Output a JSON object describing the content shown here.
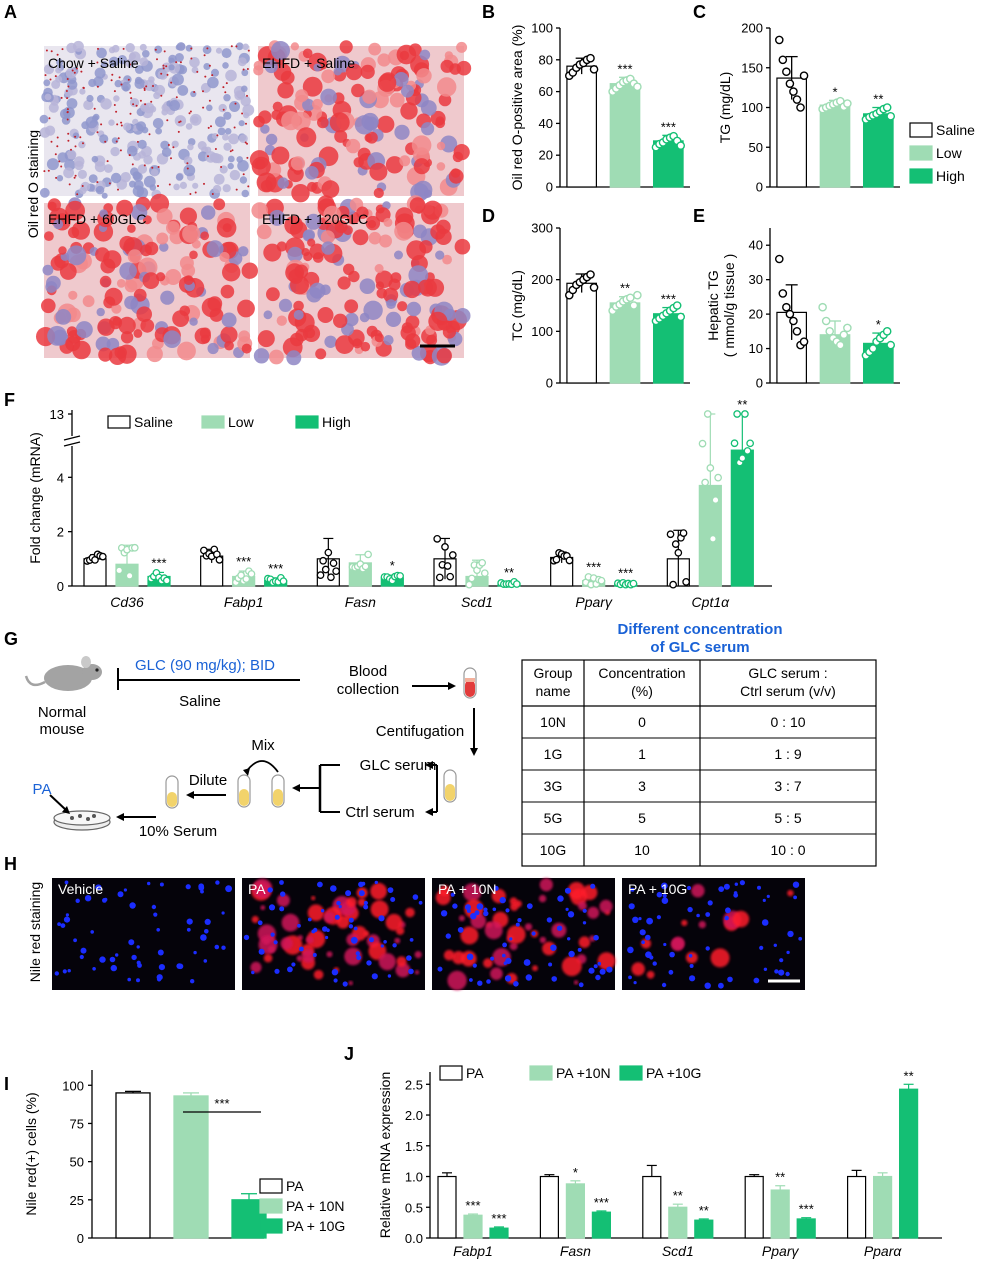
{
  "colors": {
    "saline": "#ffffff",
    "low": "#9fdcb4",
    "high": "#14bf74",
    "blue_text": "#1a62d6",
    "edge": "#000000"
  },
  "panels": {
    "A": {
      "letter": "A",
      "side_label": "Oil red O staining",
      "images": [
        {
          "label": "Chow + Saline",
          "style": "light"
        },
        {
          "label": "EHFD + Saline",
          "style": "red"
        },
        {
          "label": "EHFD + 60GLC",
          "style": "red"
        },
        {
          "label": "EHFD + 120GLC",
          "style": "red"
        }
      ]
    },
    "G": {
      "letter": "G",
      "glc_dose": "GLC (90 mg/kg); BID",
      "saline": "Saline",
      "normal_mouse_1": "Normal",
      "normal_mouse_2": "mouse",
      "blood_1": "Blood",
      "blood_2": "collection",
      "centrifugation": "Centifugation",
      "glc_serum": "GLC serum",
      "ctrl_serum": "Ctrl serum",
      "mix": "Mix",
      "dilute": "Dilute",
      "pa": "PA",
      "serum10": "10% Serum",
      "table_title_1": "Different concentration",
      "table_title_2": "of GLC serum",
      "table_header": {
        "c1a": "Group",
        "c1b": "name",
        "c2a": "Concentration",
        "c2b": "(%)",
        "c3a": "GLC serum :",
        "c3b": "Ctrl serum (v/v)"
      },
      "table_rows": [
        [
          "10N",
          "0",
          "0 : 10"
        ],
        [
          "1G",
          "1",
          "1 : 9"
        ],
        [
          "3G",
          "3",
          "3 : 7"
        ],
        [
          "5G",
          "5",
          "5 : 5"
        ],
        [
          "10G",
          "10",
          "10 : 0"
        ]
      ]
    },
    "H": {
      "letter": "H",
      "side_label": "Nile red staining",
      "images": [
        {
          "label": "Vehicle",
          "red": 0
        },
        {
          "label": "PA",
          "red": 1
        },
        {
          "label": "PA + 10N",
          "red": 0.85
        },
        {
          "label": "PA + 10G",
          "red": 0.25
        }
      ]
    }
  },
  "chart_data": [
    {
      "panel": "B",
      "type": "bar",
      "ylabel": "Oil red O-positive area (%)",
      "ylim": [
        0,
        100
      ],
      "yticks": [
        0,
        20,
        40,
        60,
        80,
        100
      ],
      "series": [
        {
          "name": "Saline",
          "value": 76,
          "err": 5,
          "stars": "",
          "points": [
            70,
            72,
            75,
            77,
            78,
            80,
            81,
            74
          ]
        },
        {
          "name": "Low",
          "value": 65,
          "err": 4,
          "stars": "***",
          "points": [
            60,
            62,
            64,
            66,
            67,
            68,
            65,
            63
          ]
        },
        {
          "name": "High",
          "value": 29,
          "err": 3.5,
          "stars": "***",
          "points": [
            25,
            27,
            28,
            30,
            31,
            32,
            29,
            26
          ]
        }
      ]
    },
    {
      "panel": "C",
      "type": "bar",
      "ylabel": "TG  (mg/dL)",
      "ylim": [
        0,
        200
      ],
      "yticks": [
        0,
        50,
        100,
        150,
        200
      ],
      "series": [
        {
          "name": "Saline",
          "value": 137,
          "err": 27,
          "stars": "",
          "points": [
            185,
            160,
            145,
            130,
            120,
            110,
            100,
            140
          ]
        },
        {
          "name": "Low",
          "value": 103,
          "err": 6,
          "stars": "*",
          "points": [
            98,
            100,
            102,
            104,
            106,
            108,
            101,
            105
          ]
        },
        {
          "name": "High",
          "value": 92,
          "err": 8,
          "stars": "**",
          "points": [
            85,
            88,
            90,
            92,
            95,
            98,
            100,
            89
          ]
        }
      ],
      "legend": [
        "Saline",
        "Low",
        "High"
      ]
    },
    {
      "panel": "D",
      "type": "bar",
      "ylabel": "TC  (mg/dL)",
      "ylim": [
        0,
        300
      ],
      "yticks": [
        0,
        100,
        200,
        300
      ],
      "series": [
        {
          "name": "Saline",
          "value": 193,
          "err": 18,
          "stars": "",
          "points": [
            170,
            180,
            190,
            195,
            200,
            205,
            210,
            185
          ]
        },
        {
          "name": "Low",
          "value": 155,
          "err": 12,
          "stars": "**",
          "points": [
            140,
            148,
            152,
            158,
            162,
            165,
            150,
            170
          ]
        },
        {
          "name": "High",
          "value": 134,
          "err": 12,
          "stars": "***",
          "points": [
            120,
            125,
            130,
            135,
            140,
            145,
            150,
            128
          ]
        }
      ]
    },
    {
      "panel": "E",
      "type": "bar",
      "ylabel": "Hepatic TG",
      "ylabel2": "( mmol/g tissue )",
      "ylim": [
        0,
        45
      ],
      "yticks": [
        0,
        10,
        20,
        30,
        40
      ],
      "series": [
        {
          "name": "Saline",
          "value": 20.5,
          "err": 8,
          "stars": "",
          "points": [
            36,
            26,
            22,
            20,
            18,
            15,
            11,
            12
          ]
        },
        {
          "name": "Low",
          "value": 14,
          "err": 4,
          "stars": "",
          "points": [
            22,
            18,
            15,
            13,
            12,
            11,
            14,
            16
          ]
        },
        {
          "name": "High",
          "value": 11.5,
          "err": 3,
          "stars": "*",
          "points": [
            8,
            9,
            10,
            12,
            13,
            14,
            15,
            11
          ]
        }
      ]
    },
    {
      "panel": "F",
      "type": "bar",
      "ylabel": "Fold change (mRNA)",
      "yticks": [
        0,
        2,
        4,
        13
      ],
      "broken_axis": true,
      "legend": [
        "Saline",
        "Low",
        "High"
      ],
      "categories": [
        "Cd36",
        "Fabp1",
        "Fasn",
        "Scd1",
        "Pparγ",
        "Cpt1α"
      ],
      "series": [
        {
          "name": "Saline",
          "values": [
            1,
            1.1,
            1,
            1,
            1.05,
            1
          ],
          "errs": [
            0.15,
            0.25,
            0.75,
            0.75,
            0.2,
            1.05
          ],
          "stars": [
            "",
            "",
            "",
            "",
            "",
            ""
          ]
        },
        {
          "name": "Low",
          "values": [
            0.8,
            0.35,
            0.85,
            0.35,
            0.2,
            3.7
          ],
          "errs": [
            0.7,
            0.2,
            0.3,
            0.6,
            0.15,
            1.8
          ],
          "stars": [
            "",
            "***",
            "",
            "",
            "***",
            ""
          ]
        },
        {
          "name": "High",
          "values": [
            0.35,
            0.2,
            0.3,
            0.1,
            0.08,
            5.0
          ],
          "errs": [
            0.15,
            0.1,
            0.1,
            0.05,
            0.05,
            0.45
          ],
          "stars": [
            "***",
            "***",
            "*",
            "**",
            "***",
            "**"
          ]
        }
      ]
    },
    {
      "panel": "I",
      "type": "bar",
      "ylabel": "Nile red(+) cells (%)",
      "ylim": [
        0,
        110
      ],
      "yticks": [
        0,
        25,
        50,
        75,
        100
      ],
      "categories": [
        "PA",
        "PA + 10N",
        "PA + 10G"
      ],
      "values": [
        95,
        93,
        25
      ],
      "errs": [
        1,
        2,
        4
      ],
      "bracket": {
        "from": 1,
        "to": 2,
        "label": "***"
      },
      "legend": [
        "PA",
        "PA + 10N",
        "PA + 10G"
      ]
    },
    {
      "panel": "J",
      "type": "bar",
      "ylabel": "Relative mRNA expression",
      "ylim": [
        0,
        2.7
      ],
      "yticks": [
        0.0,
        0.5,
        1.0,
        1.5,
        2.0,
        2.5
      ],
      "legend": [
        "PA",
        "PA +10N",
        "PA +10G"
      ],
      "categories": [
        "Fabp1",
        "Fasn",
        "Scd1",
        "Pparγ",
        "Pparα"
      ],
      "series": [
        {
          "name": "PA",
          "values": [
            1.0,
            1.0,
            1.0,
            1.0,
            1.0
          ],
          "errs": [
            0.06,
            0.03,
            0.18,
            0.03,
            0.1
          ],
          "stars": [
            "",
            "",
            "",
            "",
            ""
          ]
        },
        {
          "name": "PA +10N",
          "values": [
            0.37,
            0.88,
            0.5,
            0.78,
            1.0
          ],
          "errs": [
            0.02,
            0.05,
            0.05,
            0.07,
            0.06
          ],
          "stars": [
            "***",
            "*",
            "**",
            "**",
            ""
          ]
        },
        {
          "name": "PA +10G",
          "values": [
            0.16,
            0.42,
            0.29,
            0.31,
            2.42
          ],
          "errs": [
            0.02,
            0.02,
            0.02,
            0.02,
            0.08
          ],
          "stars": [
            "***",
            "***",
            "**",
            "***",
            "**"
          ]
        }
      ]
    }
  ]
}
